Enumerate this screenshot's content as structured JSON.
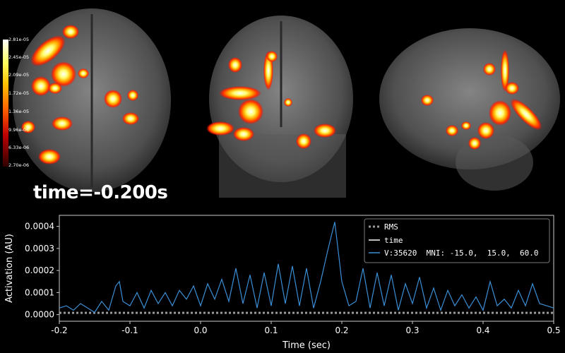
{
  "brain": {
    "colorbar_ticks": [
      "2.81e-05",
      "2.45e-05",
      "2.09e-05",
      "1.72e-05",
      "1.36e-05",
      "9.96e-06",
      "6.33e-06",
      "2.70e-06"
    ],
    "time_label": "time=-0.200s",
    "colormap": [
      "#ffffff",
      "#ffff60",
      "#ffc000",
      "#ff6000",
      "#c00000"
    ]
  },
  "chart_data": {
    "type": "line",
    "xlabel": "Time (sec)",
    "ylabel": "Activation (AU)",
    "xlim": [
      -0.2,
      0.5
    ],
    "ylim": [
      -3e-05,
      0.00045
    ],
    "xticks": [
      "-0.2",
      "-0.1",
      "0.0",
      "0.1",
      "0.2",
      "0.3",
      "0.4",
      "0.5"
    ],
    "yticks": [
      "0.0000",
      "0.0001",
      "0.0002",
      "0.0003",
      "0.0004"
    ],
    "legend_position": "top-right",
    "series": [
      {
        "name": "RMS",
        "style": "dotted",
        "color": "#9a9a9a",
        "constant": 8e-06
      },
      {
        "name": "time",
        "style": "solid",
        "color": "#ffffff"
      },
      {
        "name": "V:35620  MNI: -15.0,  15.0,  60.0",
        "style": "solid",
        "color": "#3b8fd6",
        "x": [
          -0.2,
          -0.19,
          -0.18,
          -0.17,
          -0.16,
          -0.15,
          -0.14,
          -0.13,
          -0.12,
          -0.115,
          -0.11,
          -0.1,
          -0.09,
          -0.08,
          -0.07,
          -0.06,
          -0.05,
          -0.04,
          -0.03,
          -0.02,
          -0.01,
          0.0,
          0.01,
          0.02,
          0.03,
          0.04,
          0.05,
          0.06,
          0.07,
          0.08,
          0.09,
          0.1,
          0.11,
          0.12,
          0.13,
          0.14,
          0.15,
          0.16,
          0.17,
          0.18,
          0.19,
          0.2,
          0.21,
          0.22,
          0.23,
          0.24,
          0.25,
          0.26,
          0.27,
          0.28,
          0.29,
          0.3,
          0.31,
          0.32,
          0.33,
          0.34,
          0.35,
          0.36,
          0.37,
          0.38,
          0.39,
          0.4,
          0.41,
          0.42,
          0.43,
          0.44,
          0.45,
          0.46,
          0.47,
          0.48,
          0.49,
          0.5
        ],
        "y": [
          3e-05,
          4e-05,
          2e-05,
          5e-05,
          3e-05,
          1e-05,
          6e-05,
          2e-05,
          0.00013,
          0.00015,
          6e-05,
          4e-05,
          0.0001,
          3e-05,
          0.00011,
          5e-05,
          0.0001,
          4e-05,
          0.00011,
          7e-05,
          0.00013,
          4e-05,
          0.00014,
          7e-05,
          0.00016,
          6e-05,
          0.00021,
          5e-05,
          0.00018,
          3e-05,
          0.00019,
          4e-05,
          0.00023,
          5e-05,
          0.00022,
          4e-05,
          0.00021,
          3e-05,
          0.00015,
          0.00029,
          0.00042,
          0.00015,
          4e-05,
          6e-05,
          0.00021,
          3e-05,
          0.00019,
          4e-05,
          0.00018,
          2e-05,
          0.00014,
          5e-05,
          0.00017,
          3e-05,
          0.00012,
          2e-05,
          0.00011,
          4e-05,
          9e-05,
          3e-05,
          8e-05,
          2e-05,
          0.00015,
          4e-05,
          7e-05,
          3e-05,
          0.00011,
          4e-05,
          0.00014,
          5e-05,
          4e-05,
          3e-05
        ]
      }
    ]
  }
}
